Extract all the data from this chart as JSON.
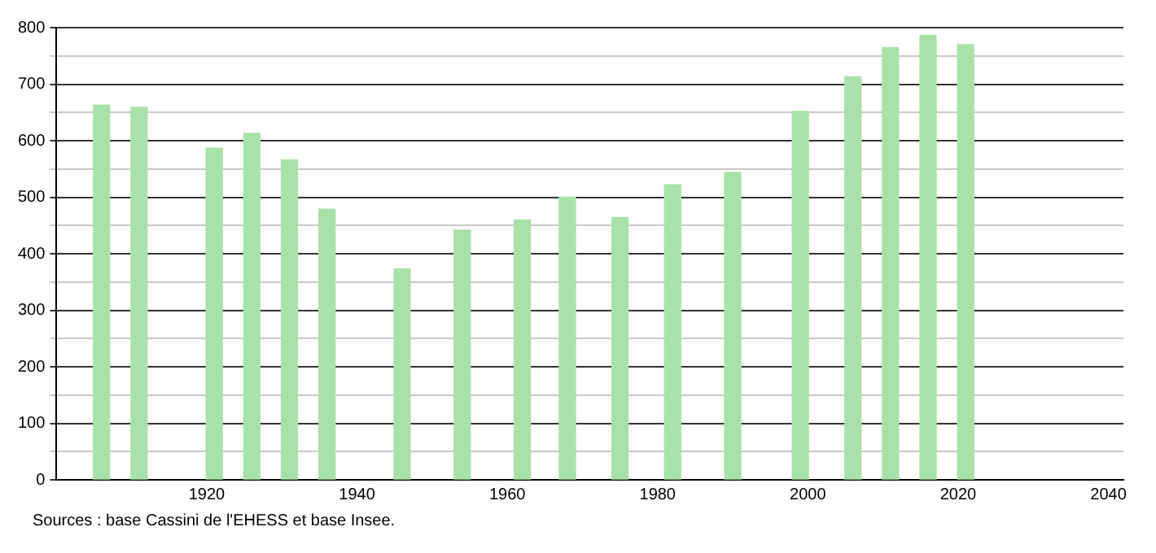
{
  "chart_data": {
    "type": "bar",
    "x": [
      1906,
      1911,
      1921,
      1926,
      1931,
      1936,
      1946,
      1954,
      1962,
      1968,
      1975,
      1982,
      1990,
      1999,
      2006,
      2011,
      2016,
      2021
    ],
    "values": [
      663,
      659,
      587,
      613,
      566,
      479,
      373,
      442,
      460,
      500,
      464,
      522,
      544,
      652,
      713,
      765,
      786,
      770
    ],
    "color": "#a8e2a8",
    "xlim": [
      1900,
      2042
    ],
    "xticks": [
      1920,
      1940,
      1960,
      1980,
      2000,
      2020,
      2040
    ],
    "ylim": [
      0,
      800
    ],
    "yticks": [
      0,
      {
        "value": 50,
        "label": null
      },
      100,
      {
        "value": 150,
        "label": null
      },
      200,
      {
        "value": 250,
        "label": null
      },
      300,
      {
        "value": 350,
        "label": null
      },
      400,
      {
        "value": 450,
        "label": null
      },
      500,
      {
        "value": 550,
        "label": null
      },
      600,
      {
        "value": 650,
        "label": null
      },
      700,
      {
        "value": 750,
        "label": null
      },
      800
    ],
    "grid": "y",
    "annotations": [
      "Sources : base Cassini de l'EHESS et base Insee."
    ]
  }
}
